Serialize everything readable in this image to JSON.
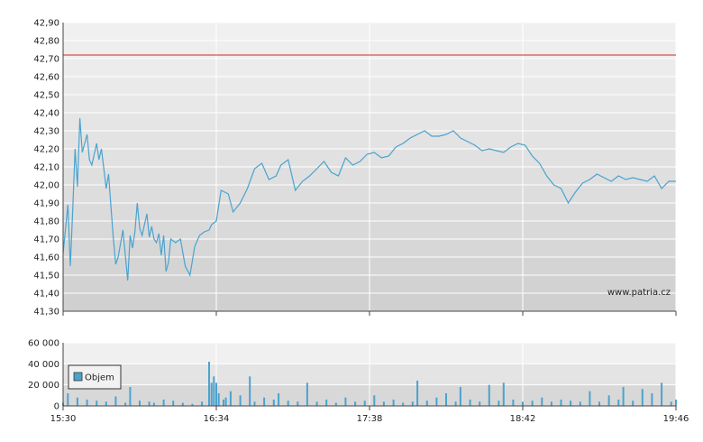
{
  "chart_data": [
    {
      "type": "line",
      "title": "",
      "xlabel": "",
      "ylabel": "",
      "ylim": [
        41.3,
        42.9
      ],
      "y_ticks": [
        "42,90",
        "42,80",
        "42,70",
        "42,60",
        "42,50",
        "42,40",
        "42,30",
        "42,20",
        "42,10",
        "42,00",
        "41,90",
        "41,80",
        "41,70",
        "41,60",
        "41,50",
        "41,40",
        "41,30"
      ],
      "x_ticks": [
        "15:30",
        "16:34",
        "17:38",
        "18:42",
        "19:46"
      ],
      "reference_line": 42.72,
      "watermark": "www.patria.cz",
      "grid": true,
      "colors": {
        "line": "#4aa3cf",
        "reference": "#cc2a2a"
      },
      "series": [
        {
          "x": [
            "15:30",
            "15:32",
            "15:33",
            "15:34",
            "15:35",
            "15:36",
            "15:37",
            "15:38",
            "15:40",
            "15:41",
            "15:42",
            "15:44",
            "15:45",
            "15:46",
            "15:47",
            "15:48",
            "15:49",
            "15:50",
            "15:51",
            "15:52",
            "15:53",
            "15:55",
            "15:57",
            "15:58",
            "15:59",
            "16:00",
            "16:01",
            "16:02",
            "16:03",
            "16:04",
            "16:05",
            "16:06",
            "16:07",
            "16:08",
            "16:09",
            "16:10",
            "16:11",
            "16:12",
            "16:13",
            "16:14",
            "16:15",
            "16:17",
            "16:19",
            "16:21",
            "16:23",
            "16:25",
            "16:27",
            "16:29",
            "16:31",
            "16:32",
            "16:34",
            "16:36",
            "16:39",
            "16:41",
            "16:44",
            "16:47",
            "16:50",
            "16:53",
            "16:56",
            "16:59",
            "17:01",
            "17:04",
            "17:07",
            "17:10",
            "17:13",
            "17:16",
            "17:19",
            "17:22",
            "17:25",
            "17:28",
            "17:31",
            "17:34",
            "17:37",
            "17:40",
            "17:43",
            "17:46",
            "17:49",
            "17:52",
            "17:55",
            "17:58",
            "18:01",
            "18:04",
            "18:07",
            "18:10",
            "18:13",
            "18:16",
            "18:19",
            "18:22",
            "18:25",
            "18:28",
            "18:31",
            "18:34",
            "18:37",
            "18:40",
            "18:43",
            "18:46",
            "18:49",
            "18:52",
            "18:55",
            "18:58",
            "19:01",
            "19:04",
            "19:07",
            "19:10",
            "19:13",
            "19:16",
            "19:19",
            "19:22",
            "19:25",
            "19:28",
            "19:31",
            "19:34",
            "19:37",
            "19:40",
            "19:43",
            "19:46"
          ],
          "values": [
            41.62,
            41.89,
            41.55,
            41.85,
            42.2,
            41.99,
            42.37,
            42.18,
            42.28,
            42.14,
            42.11,
            42.23,
            42.14,
            42.2,
            42.09,
            41.98,
            42.06,
            41.88,
            41.7,
            41.56,
            41.6,
            41.75,
            41.47,
            41.72,
            41.65,
            41.74,
            41.9,
            41.76,
            41.72,
            41.78,
            41.84,
            41.71,
            41.77,
            41.7,
            41.68,
            41.73,
            41.61,
            41.72,
            41.52,
            41.57,
            41.7,
            41.68,
            41.7,
            41.55,
            41.5,
            41.66,
            41.72,
            41.74,
            41.75,
            41.78,
            41.8,
            41.97,
            41.95,
            41.85,
            41.9,
            41.98,
            42.09,
            42.12,
            42.03,
            42.05,
            42.11,
            42.14,
            41.97,
            42.02,
            42.05,
            42.09,
            42.13,
            42.07,
            42.05,
            42.15,
            42.11,
            42.13,
            42.17,
            42.18,
            42.15,
            42.16,
            42.21,
            42.23,
            42.26,
            42.28,
            42.3,
            42.27,
            42.27,
            42.28,
            42.3,
            42.26,
            42.24,
            42.22,
            42.19,
            42.2,
            42.19,
            42.18,
            42.21,
            42.23,
            42.22,
            42.16,
            42.12,
            42.05,
            42.0,
            41.98,
            41.9,
            41.96,
            42.01,
            42.03,
            42.06,
            42.04,
            42.02,
            42.05,
            42.03,
            42.04,
            42.03,
            42.02,
            42.05,
            41.98,
            42.02,
            42.02
          ]
        }
      ]
    },
    {
      "type": "bar",
      "title": "",
      "xlabel": "",
      "ylabel": "",
      "ylim": [
        0,
        60000
      ],
      "y_ticks": [
        "60 000",
        "40 000",
        "20 000",
        "0"
      ],
      "x_ticks": [
        "15:30",
        "16:34",
        "17:38",
        "18:42",
        "19:46"
      ],
      "legend": {
        "label": "Objem",
        "placement": "top-left"
      },
      "grid": true,
      "colors": {
        "bar": "#4aa3cf"
      },
      "series": [
        {
          "name": "Objem",
          "x": [
            "15:30",
            "15:32",
            "15:36",
            "15:40",
            "15:44",
            "15:48",
            "15:52",
            "15:56",
            "15:58",
            "16:02",
            "16:06",
            "16:08",
            "16:12",
            "16:16",
            "16:20",
            "16:24",
            "16:28",
            "16:31",
            "16:32",
            "16:33",
            "16:34",
            "16:35",
            "16:37",
            "16:38",
            "16:40",
            "16:44",
            "16:48",
            "16:50",
            "16:54",
            "16:58",
            "17:00",
            "17:04",
            "17:08",
            "17:12",
            "17:16",
            "17:20",
            "17:24",
            "17:28",
            "17:32",
            "17:36",
            "17:40",
            "17:44",
            "17:48",
            "17:52",
            "17:56",
            "17:58",
            "18:02",
            "18:06",
            "18:10",
            "18:14",
            "18:16",
            "18:20",
            "18:24",
            "18:28",
            "18:32",
            "18:34",
            "18:38",
            "18:42",
            "18:46",
            "18:50",
            "18:54",
            "18:58",
            "19:02",
            "19:06",
            "19:10",
            "19:14",
            "19:18",
            "19:22",
            "19:24",
            "19:28",
            "19:32",
            "19:36",
            "19:40",
            "19:44",
            "19:46"
          ],
          "values": [
            3000,
            12000,
            8000,
            6000,
            5000,
            4000,
            9000,
            3000,
            18000,
            5000,
            4000,
            3000,
            6000,
            5000,
            3000,
            2000,
            4000,
            42000,
            22000,
            28000,
            22000,
            12000,
            6000,
            8000,
            14000,
            10000,
            28000,
            4000,
            8000,
            6000,
            12000,
            5000,
            4000,
            22000,
            4000,
            6000,
            3000,
            8000,
            4000,
            5000,
            10000,
            4000,
            6000,
            3000,
            4000,
            24000,
            5000,
            8000,
            12000,
            4000,
            18000,
            6000,
            4000,
            20000,
            5000,
            22000,
            6000,
            4000,
            5000,
            8000,
            4000,
            6000,
            5000,
            4000,
            14000,
            4000,
            10000,
            6000,
            18000,
            5000,
            16000,
            12000,
            22000,
            4000,
            6000
          ]
        }
      ]
    }
  ]
}
